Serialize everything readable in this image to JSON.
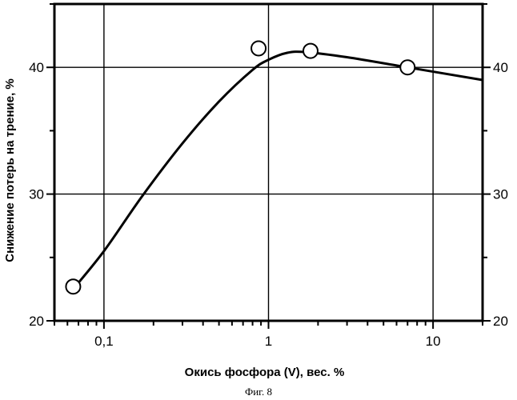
{
  "chart_data": {
    "type": "scatter",
    "title": "",
    "xlabel": "Окись фосфора (V), вес. %",
    "ylabel": "Снижение потерь на трение, %",
    "xscale": "log",
    "xlim": [
      0.05,
      20
    ],
    "ylim": [
      20,
      45
    ],
    "grid": true,
    "x_ticks": [
      0.1,
      1,
      10
    ],
    "x_tick_labels": [
      "0,1",
      "1",
      "10"
    ],
    "y_ticks": [
      20,
      30,
      40
    ],
    "y_tick_labels": [
      "20",
      "30",
      "40"
    ],
    "right_y_axis": true,
    "series": [
      {
        "kind": "points",
        "marker": "open-circle",
        "x": [
          0.065,
          0.87,
          1.8,
          7.0
        ],
        "y": [
          22.7,
          41.5,
          41.3,
          40.0
        ]
      },
      {
        "kind": "fitted-curve",
        "x": [
          0.065,
          0.1,
          0.17,
          0.3,
          0.5,
          0.8,
          1.0,
          1.3,
          1.7,
          3.0,
          7.0,
          20.0
        ],
        "y": [
          22.5,
          25.5,
          29.8,
          34.0,
          37.3,
          39.8,
          40.6,
          41.15,
          41.2,
          40.8,
          40.0,
          39.0
        ]
      }
    ]
  },
  "caption": "Фиг. 8"
}
